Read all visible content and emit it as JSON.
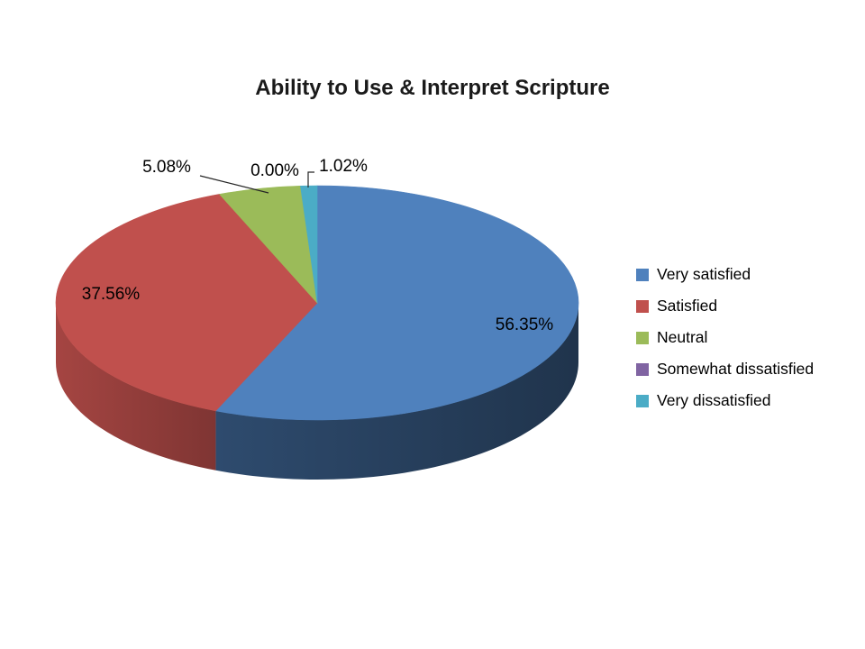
{
  "chart_data": {
    "type": "pie",
    "title": "Ability to Use & Interpret Scripture",
    "effect": "3d",
    "start_angle_deg": 0,
    "direction": "clockwise",
    "legend_position": "right",
    "background_color": "#ffffff",
    "slices": [
      {
        "label": "Very satisfied",
        "value": 56.35,
        "display": "56.35%",
        "color": "#4F81BD"
      },
      {
        "label": "Satisfied",
        "value": 37.56,
        "display": "37.56%",
        "color": "#C0504D"
      },
      {
        "label": "Neutral",
        "value": 5.08,
        "display": "5.08%",
        "color": "#9BBB59"
      },
      {
        "label": "Somewhat dissatisfied",
        "value": 0.0,
        "display": "0.00%",
        "color": "#8064A2"
      },
      {
        "label": "Very dissatisfied",
        "value": 1.02,
        "display": "1.02%",
        "color": "#4BACC6"
      }
    ]
  }
}
